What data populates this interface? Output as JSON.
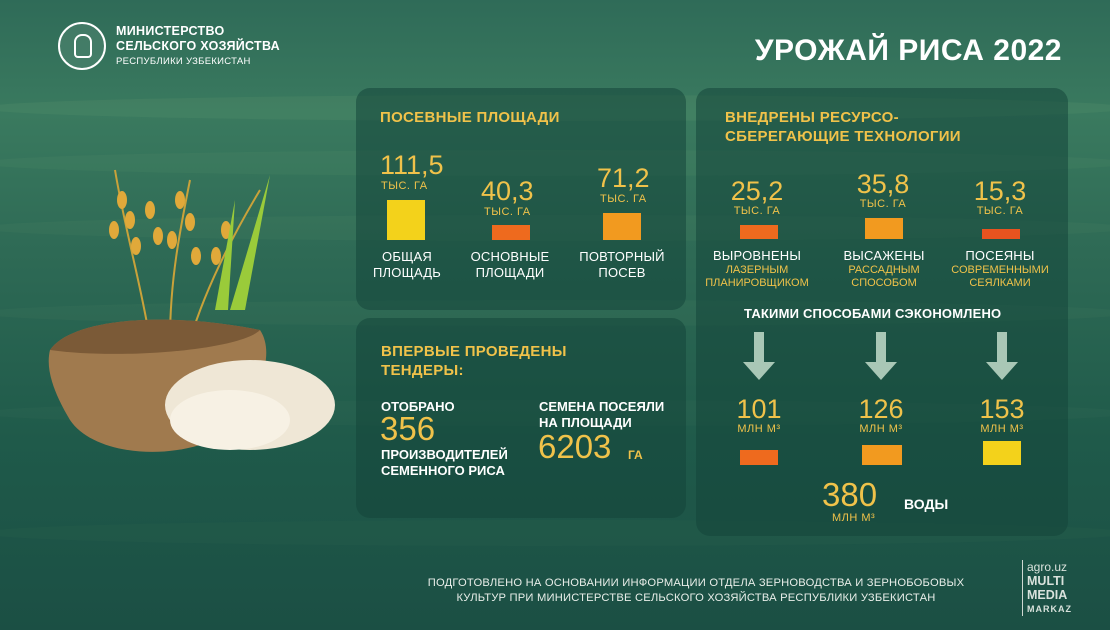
{
  "header": {
    "ministry_line1": "МИНИСТЕРСТВО",
    "ministry_line2": "СЕЛЬСКОГО ХОЗЯЙСТВА",
    "ministry_line3": "РЕСПУБЛИКИ УЗБЕКИСТАН",
    "title": "УРОЖАЙ РИСА 2022"
  },
  "areas": {
    "title": "ПОСЕВНЫЕ ПЛОЩАДИ",
    "items": [
      {
        "value": "111,5",
        "unit": "ТЫС. ГА",
        "label1": "ОБЩАЯ",
        "label2": "ПЛОЩАДЬ",
        "color": "#f3d21b"
      },
      {
        "value": "40,3",
        "unit": "ТЫС. ГА",
        "label1": "ОСНОВНЫЕ",
        "label2": "ПЛОЩАДИ",
        "color": "#ee6a1e"
      },
      {
        "value": "71,2",
        "unit": "ТЫС. ГА",
        "label1": "ПОВТОРНЫЙ",
        "label2": "ПОСЕВ",
        "color": "#f29a1f"
      }
    ]
  },
  "tenders": {
    "title_line1": "ВПЕРВЫЕ ПРОВЕДЕНЫ",
    "title_line2": "ТЕНДЕРЫ:",
    "selected_label": "ОТОБРАНО",
    "selected_value": "356",
    "selected_desc1": "ПРОИЗВОДИТЕЛЕЙ",
    "selected_desc2": "СЕМЕННОГО РИСА",
    "seeds_label1": "СЕМЕНА ПОСЕЯЛИ",
    "seeds_label2": "НА ПЛОЩАДИ",
    "seeds_value": "6203",
    "seeds_unit": "ГА"
  },
  "tech": {
    "title_line1": "ВНЕДРЕНЫ РЕСУРСО-",
    "title_line2": "СБЕРЕГАЮЩИЕ ТЕХНОЛОГИИ",
    "items": [
      {
        "value": "25,2",
        "unit": "ТЫС. ГА",
        "label": "ВЫРОВНЕНЫ",
        "sub1": "ЛАЗЕРНЫМ",
        "sub2": "ПЛАНИРОВЩИКОМ",
        "color": "#ee6a1e"
      },
      {
        "value": "35,8",
        "unit": "ТЫС. ГА",
        "label": "ВЫСАЖЕНЫ",
        "sub1": "РАССАДНЫМ",
        "sub2": "СПОСОБОМ",
        "color": "#f29a1f"
      },
      {
        "value": "15,3",
        "unit": "ТЫС. ГА",
        "label": "ПОСЕЯНЫ",
        "sub1": "СОВРЕМЕННЫМИ",
        "sub2": "СЕЯЛКАМИ",
        "color": "#e8531f"
      }
    ],
    "saved_title": "ТАКИМИ СПОСОБАМИ СЭКОНОМЛЕНО",
    "saved": [
      {
        "value": "101",
        "unit": "МЛН М³",
        "color": "#ee6a1e"
      },
      {
        "value": "126",
        "unit": "МЛН М³",
        "color": "#f29a1f"
      },
      {
        "value": "153",
        "unit": "МЛН М³",
        "color": "#f3d21b"
      }
    ],
    "total_value": "380",
    "total_unit": "МЛН М³",
    "total_label": "ВОДЫ"
  },
  "footer": {
    "line1": "ПОДГОТОВЛЕНО НА ОСНОВАНИИ  ИНФОРМАЦИИ ОТДЕЛА ЗЕРНОВОДСТВА И ЗЕРНОБОБОВЫХ",
    "line2": "КУЛЬТУР ПРИ МИНИСТЕРСТВЕ СЕЛЬСКОГО ХОЗЯЙСТВА РЕСПУБЛИКИ УЗБЕКИСТАН"
  },
  "brand": {
    "line1": "agro.uz",
    "line2": "MULTI",
    "line3": "MEDIA",
    "line4": "MARKAZ"
  },
  "icons": [
    "emblem-icon",
    "rice-sack-illustration",
    "arrow-down-icon"
  ]
}
